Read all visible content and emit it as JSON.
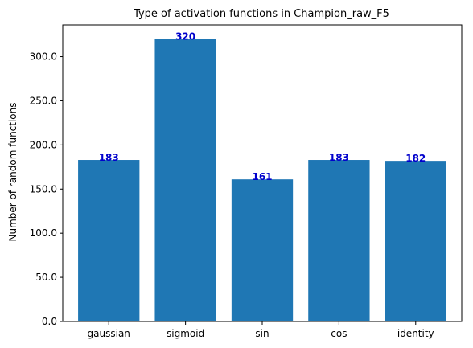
{
  "chart_data": {
    "type": "bar",
    "title": "Type of activation functions in Champion_raw_F5",
    "xlabel": "",
    "ylabel": "Number of random functions",
    "categories": [
      "gaussian",
      "sigmoid",
      "sin",
      "cos",
      "identity"
    ],
    "values": [
      183,
      320,
      161,
      183,
      182
    ],
    "ylim": [
      0,
      336
    ],
    "yticks": [
      0,
      50,
      100,
      150,
      200,
      250,
      300
    ],
    "ytick_labels": [
      "0.0",
      "50.0",
      "100.0",
      "150.0",
      "200.0",
      "250.0",
      "300.0"
    ],
    "data_labels": [
      "183",
      "320",
      "161",
      "183",
      "182"
    ],
    "grid": false,
    "bar_color": "#1f77b4",
    "label_color": "#0000cc"
  }
}
